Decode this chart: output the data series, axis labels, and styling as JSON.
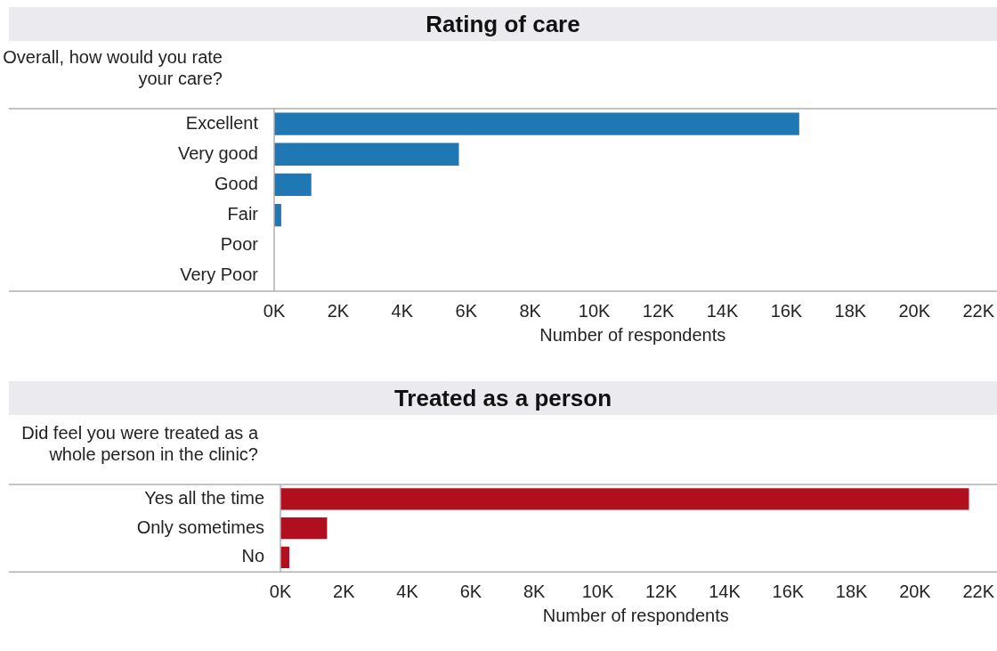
{
  "chart_data": [
    {
      "type": "bar",
      "orientation": "horizontal",
      "title": "Rating of care",
      "ylabel": "Overall, how would you rate your care?",
      "xlabel": "Number of respondents",
      "categories": [
        "Excellent",
        "Very good",
        "Good",
        "Fair",
        "Poor",
        "Very Poor"
      ],
      "values": [
        16400,
        5770,
        1160,
        220,
        0,
        0
      ],
      "color": "#1f77b4",
      "xlim": [
        0,
        22400
      ],
      "xticks": [
        {
          "value": 0,
          "label": "0K"
        },
        {
          "value": 2000,
          "label": "2K"
        },
        {
          "value": 4000,
          "label": "4K"
        },
        {
          "value": 6000,
          "label": "6K"
        },
        {
          "value": 8000,
          "label": "8K"
        },
        {
          "value": 10000,
          "label": "10K"
        },
        {
          "value": 12000,
          "label": "12K"
        },
        {
          "value": 14000,
          "label": "14K"
        },
        {
          "value": 16000,
          "label": "16K"
        },
        {
          "value": 18000,
          "label": "18K"
        },
        {
          "value": 20000,
          "label": "20K"
        },
        {
          "value": 22000,
          "label": "22K"
        }
      ]
    },
    {
      "type": "bar",
      "orientation": "horizontal",
      "title": "Treated as a person",
      "ylabel": "Did feel you were treated as a whole person in the clinic?",
      "xlabel": "Number of respondents",
      "categories": [
        "Yes all the time",
        "Only sometimes",
        "No"
      ],
      "values": [
        21700,
        1470,
        280
      ],
      "color": "#b10f1e",
      "xlim": [
        0,
        22400
      ],
      "xticks": [
        {
          "value": 0,
          "label": "0K"
        },
        {
          "value": 2000,
          "label": "2K"
        },
        {
          "value": 4000,
          "label": "4K"
        },
        {
          "value": 6000,
          "label": "6K"
        },
        {
          "value": 8000,
          "label": "8K"
        },
        {
          "value": 10000,
          "label": "10K"
        },
        {
          "value": 12000,
          "label": "12K"
        },
        {
          "value": 14000,
          "label": "14K"
        },
        {
          "value": 16000,
          "label": "16K"
        },
        {
          "value": 18000,
          "label": "18K"
        },
        {
          "value": 20000,
          "label": "20K"
        },
        {
          "value": 22000,
          "label": "22K"
        }
      ]
    }
  ]
}
